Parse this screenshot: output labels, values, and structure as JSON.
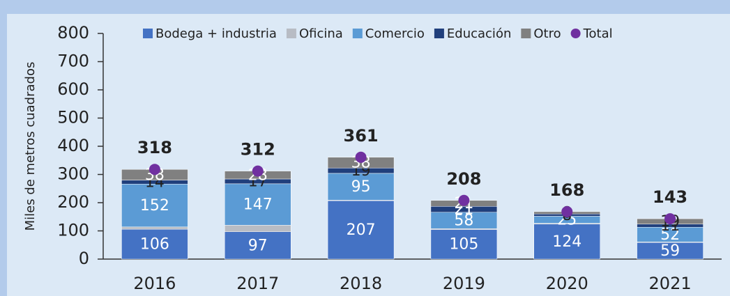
{
  "chart_data": {
    "type": "bar",
    "stacked": true,
    "y_label": "Miles de metros cuadrados",
    "categories": [
      "2016",
      "2017",
      "2018",
      "2019",
      "2020",
      "2021"
    ],
    "series": [
      {
        "name": "Bodega + industria",
        "color": "#4472c4",
        "values": [
          106,
          97,
          207,
          105,
          124,
          59
        ]
      },
      {
        "name": "Oficina",
        "color": "#b8bcc4",
        "values": [
          8,
          23,
          2,
          3,
          3,
          2
        ],
        "show_labels": false
      },
      {
        "name": "Comercio",
        "color": "#5b9bd5",
        "values": [
          152,
          147,
          95,
          58,
          25,
          52
        ]
      },
      {
        "name": "Educación",
        "color": "#203f7c",
        "values": [
          14,
          17,
          19,
          21,
          8,
          11
        ]
      },
      {
        "name": "Otro",
        "color": "#808080",
        "values": [
          38,
          28,
          38,
          21,
          8,
          19
        ]
      },
      {
        "name": "Total",
        "type": "scatter",
        "color": "#7030a0",
        "values": [
          318,
          312,
          361,
          208,
          168,
          143
        ]
      }
    ],
    "ylim": [
      0,
      800
    ],
    "yticks": [
      0,
      100,
      200,
      300,
      400,
      500,
      600,
      700,
      800
    ],
    "legend": "top"
  }
}
